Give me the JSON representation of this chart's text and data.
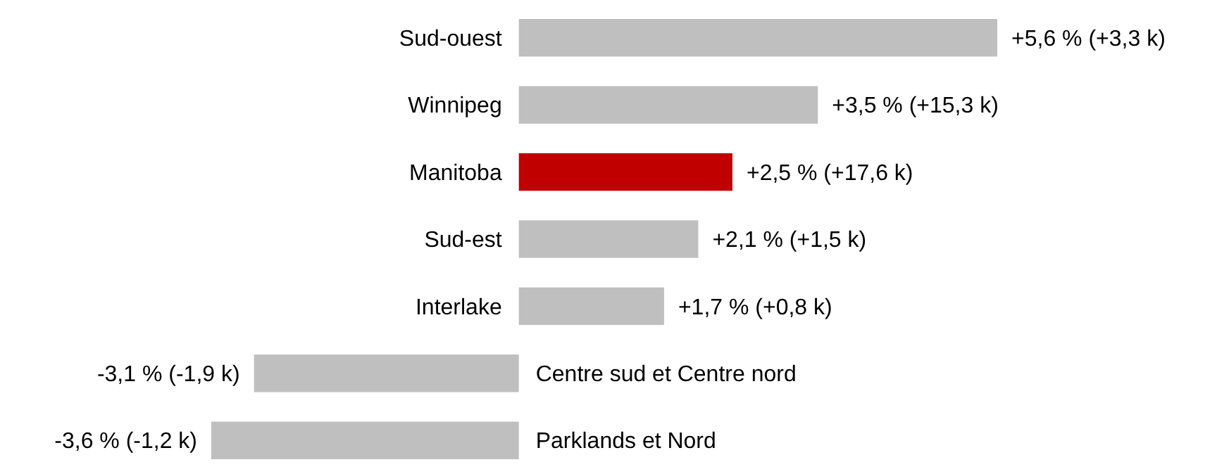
{
  "chart_data": {
    "type": "bar",
    "orientation": "horizontal",
    "categories": [
      "Sud-ouest",
      "Winnipeg",
      "Manitoba",
      "Sud-est",
      "Interlake",
      "Centre sud et Centre nord",
      "Parklands et Nord"
    ],
    "values": [
      5.6,
      3.5,
      2.5,
      2.1,
      1.7,
      -3.1,
      -3.6
    ],
    "colors": [
      "#bfbfbf",
      "#bfbfbf",
      "#c00000",
      "#bfbfbf",
      "#bfbfbf",
      "#bfbfbf",
      "#bfbfbf"
    ],
    "value_labels": [
      "+5,6 % (+3,3 k)",
      "+3,5 % (+15,3 k)",
      "+2,5 % (+17,6 k)",
      "+2,1 % (+1,5 k)",
      "+1,7 % (+0,8 k)",
      "-3,1 % (-1,9 k)",
      "-3,6 % (-1,2 k)"
    ]
  }
}
